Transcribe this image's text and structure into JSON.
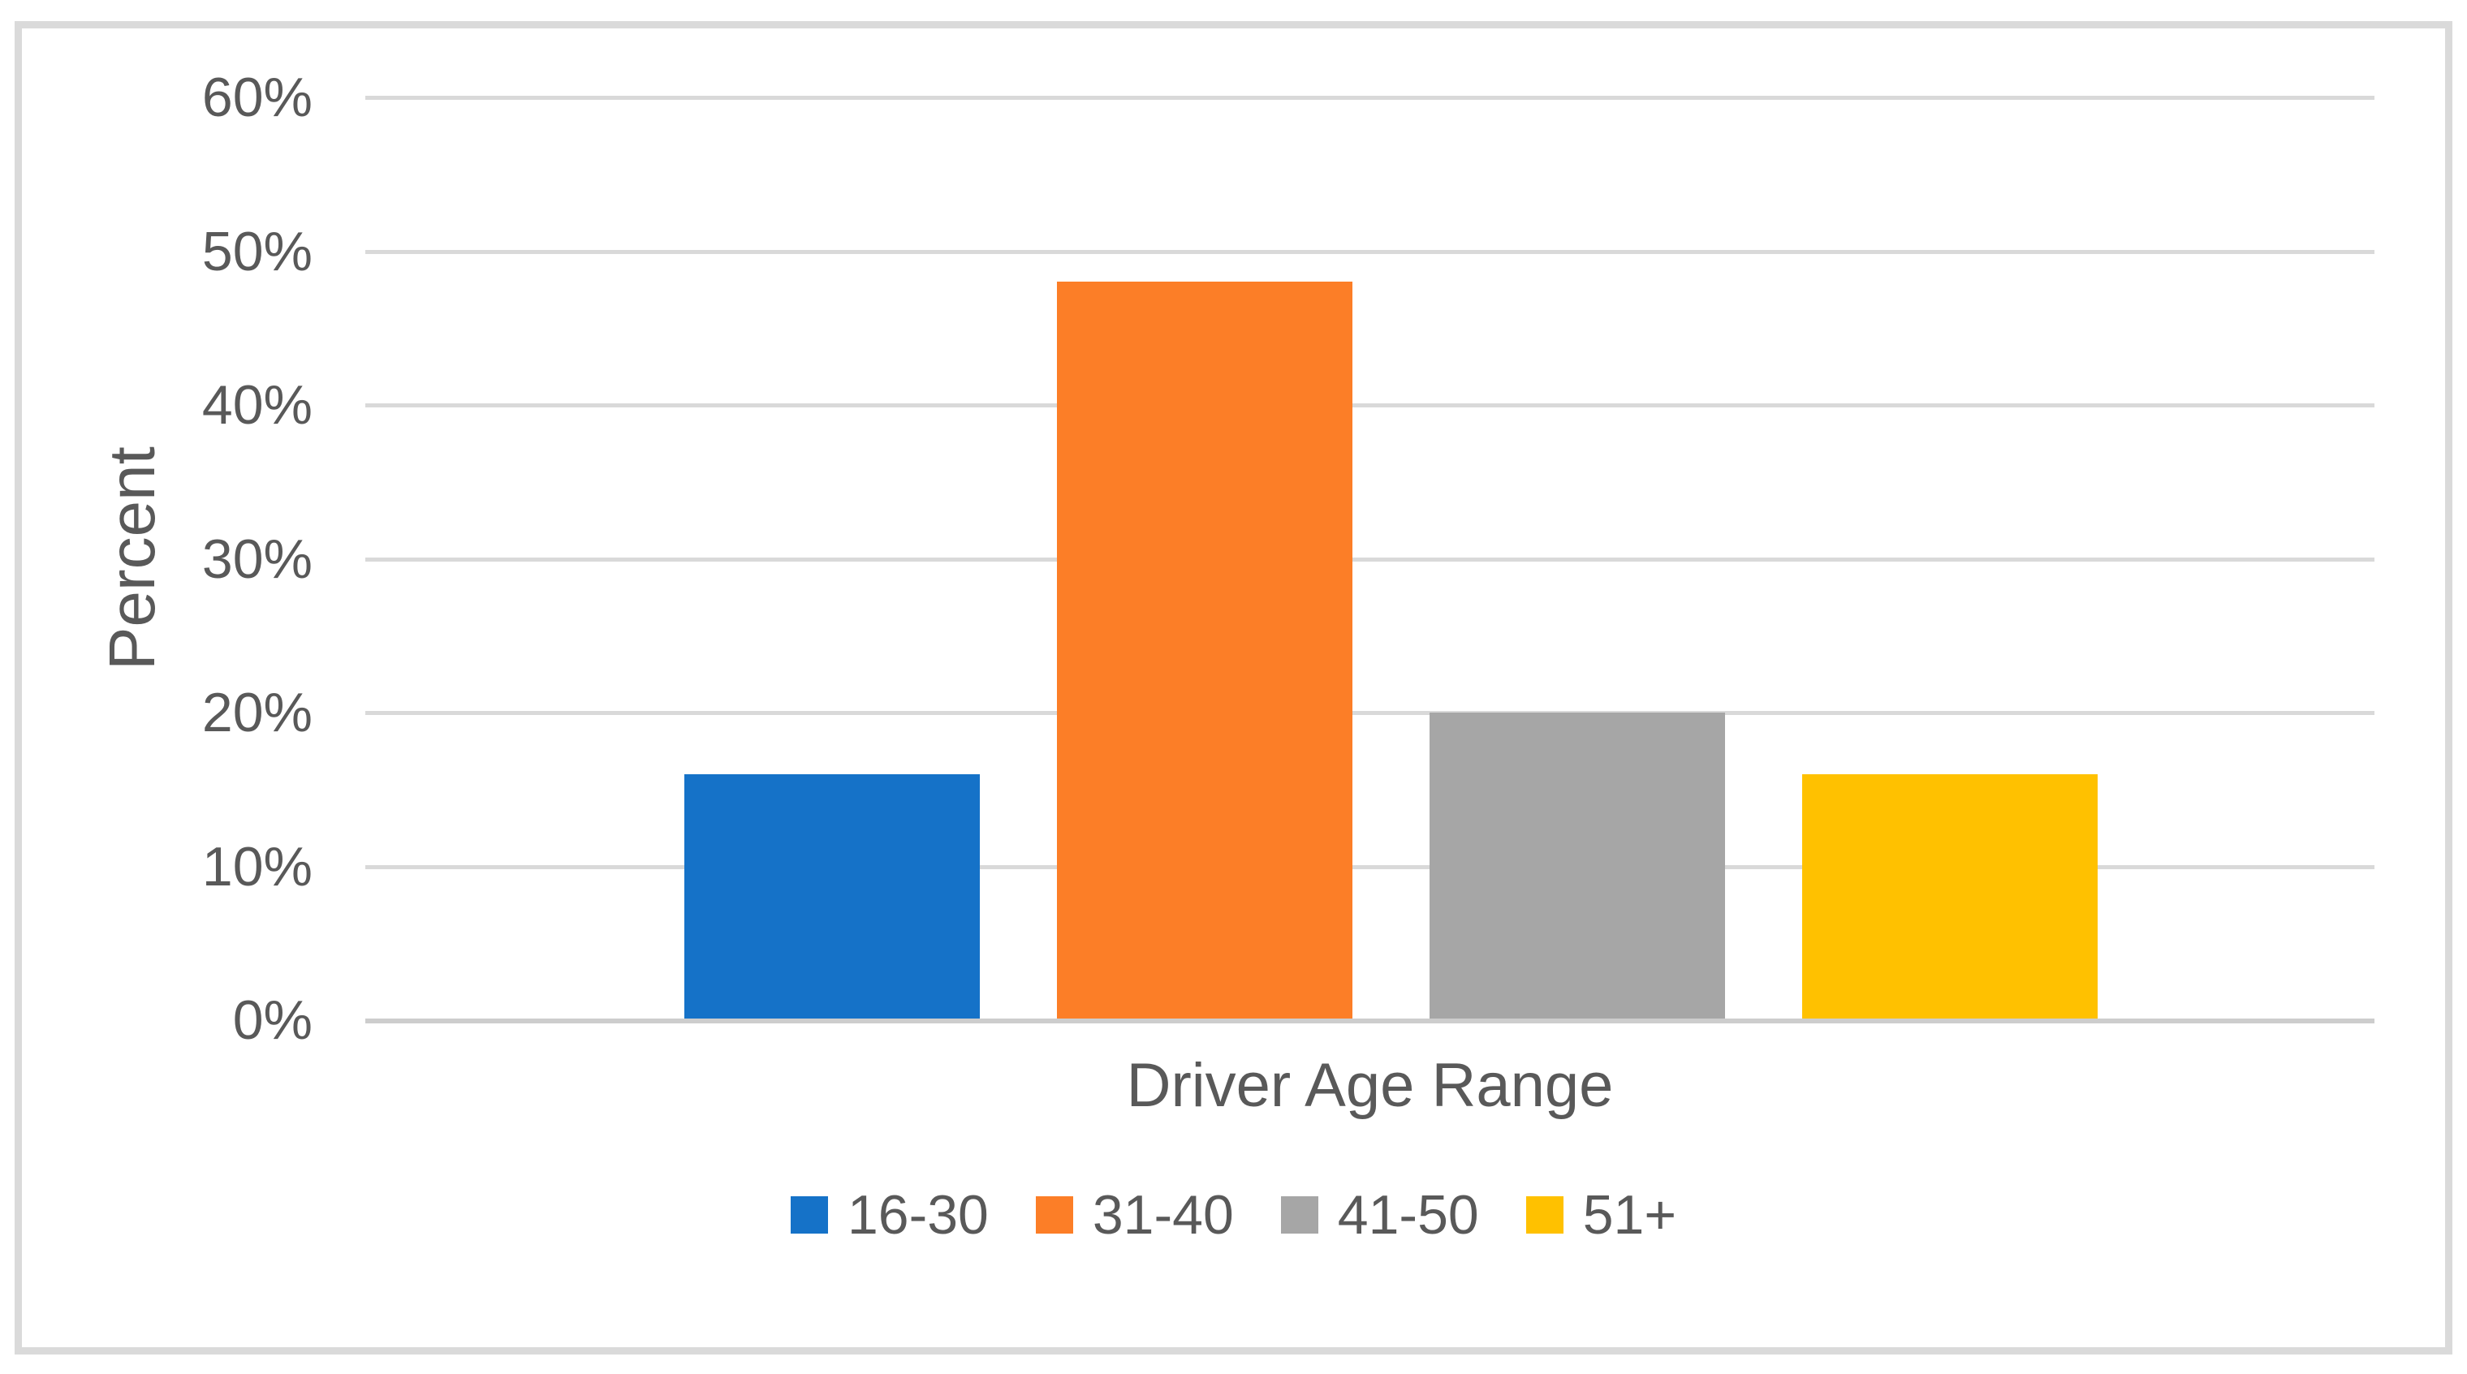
{
  "window": {
    "background_color": "#FFFFFF",
    "frame_border_color": "#DADADA"
  },
  "chart_data": {
    "type": "bar",
    "title": "",
    "xlabel": "Driver Age Range",
    "ylabel": "Percent",
    "categories": [
      "16-30",
      "31-40",
      "41-50",
      "51+"
    ],
    "series": [
      {
        "name": "16-30",
        "value": 16,
        "color": "#1572C8"
      },
      {
        "name": "31-40",
        "value": 48,
        "color": "#FC7E27"
      },
      {
        "name": "41-50",
        "value": 20,
        "color": "#A6A6A6"
      },
      {
        "name": "51+",
        "value": 16,
        "color": "#FFC100"
      }
    ],
    "value_unit": "percent",
    "ylim": [
      0,
      60
    ],
    "yticks": [
      {
        "value": 0,
        "label": "0%"
      },
      {
        "value": 10,
        "label": "10%"
      },
      {
        "value": 20,
        "label": "20%"
      },
      {
        "value": 30,
        "label": "30%"
      },
      {
        "value": 40,
        "label": "40%"
      },
      {
        "value": 50,
        "label": "50%"
      },
      {
        "value": 60,
        "label": "60%"
      }
    ],
    "grid": true,
    "gridline_color": "#D9D9D9",
    "axis_line_color": "#CDCDCD",
    "axis_text_color": "#595959",
    "legend_position": "bottom"
  }
}
